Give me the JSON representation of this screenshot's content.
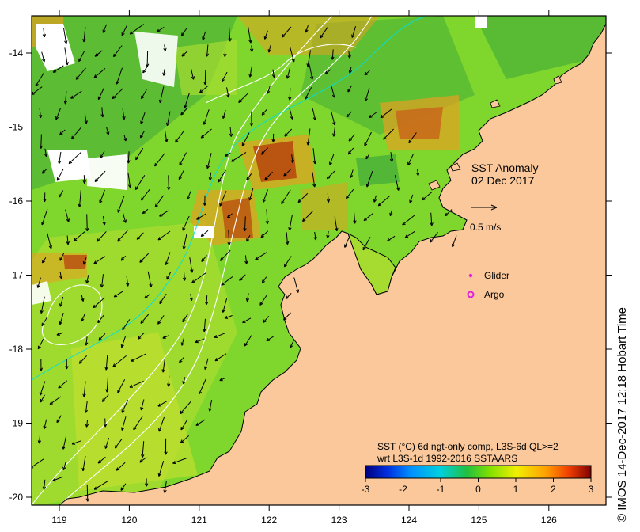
{
  "map": {
    "title": "SST Anomaly",
    "date": "02 Dec 2017",
    "velocity_scale_label": "0.5 m/s",
    "legend": {
      "glider_label": "Glider",
      "argo_label": "Argo"
    },
    "colorbar": {
      "caption_line1": "SST (°C) 6d ngt-only comp, L3S-6d QL>=2",
      "caption_line2": "wrt L3S-1d 1992-2016 SSTAARS",
      "ticks": [
        "-3",
        "-2",
        "-1",
        "0",
        "1",
        "2",
        "3"
      ],
      "colors": [
        "#000080",
        "#0000d0",
        "#0060ff",
        "#00b0ff",
        "#20e0c0",
        "#40d040",
        "#a0e000",
        "#f0f000",
        "#ffb000",
        "#ff6000",
        "#d02000",
        "#800000"
      ]
    },
    "x_ticks": [
      "119",
      "120",
      "121",
      "122",
      "123",
      "124",
      "125",
      "126"
    ],
    "y_ticks": [
      "-14",
      "-15",
      "-16",
      "-17",
      "-18",
      "-19",
      "-20"
    ],
    "credit": "© IMOS 14-Dec-2017 12:18 Hobart Time",
    "colors": {
      "land": "#fac89a",
      "sea_green": "#7fd62c",
      "sea_light": "#a6dc30",
      "sea_dark": "#3fa83a",
      "warm": "#e6a020",
      "hot": "#b84a10",
      "cloud": "#ffffff"
    }
  }
}
